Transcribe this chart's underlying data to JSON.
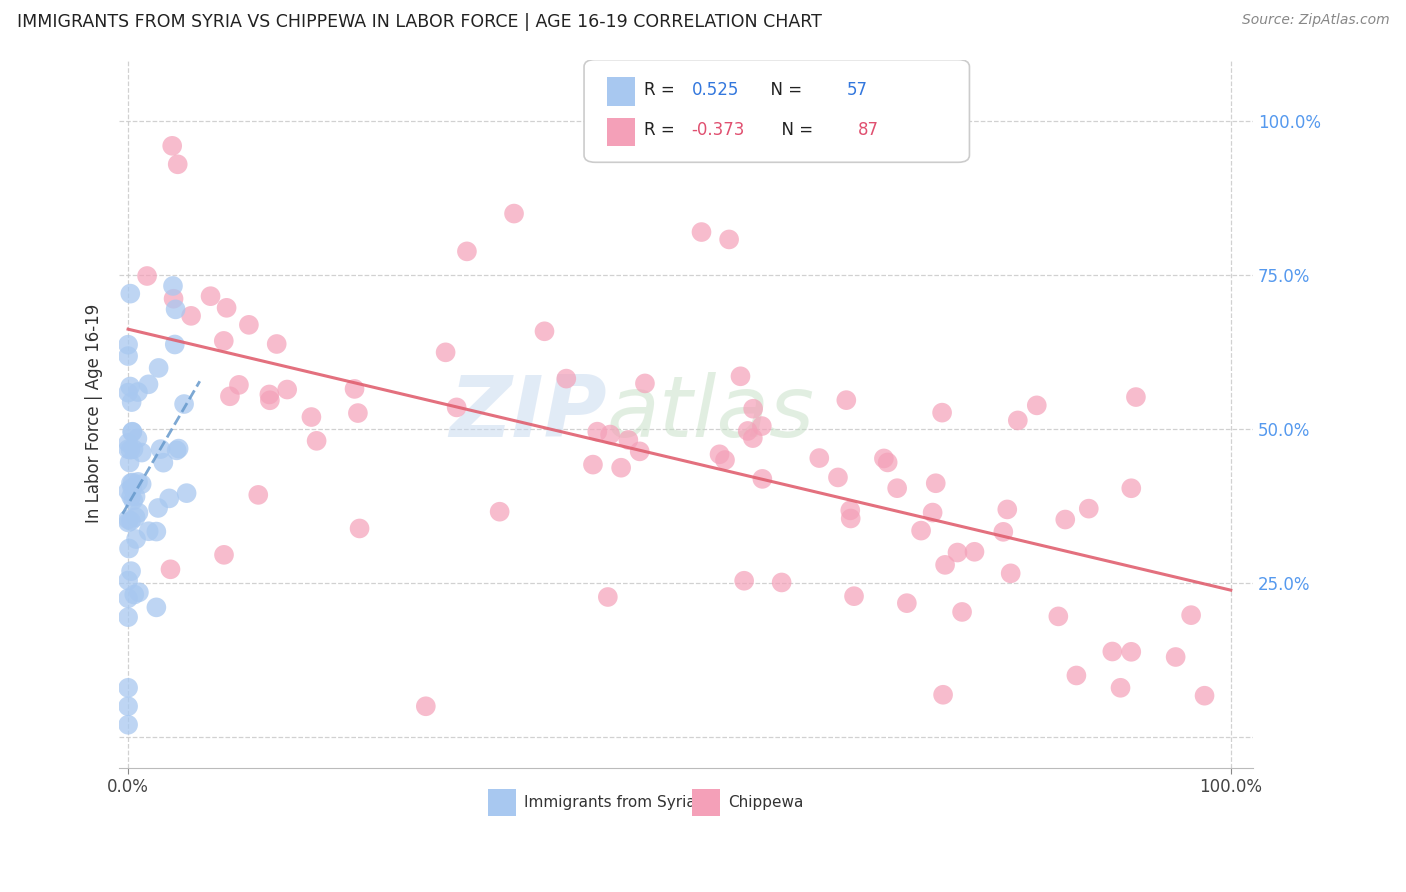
{
  "title": "IMMIGRANTS FROM SYRIA VS CHIPPEWA IN LABOR FORCE | AGE 16-19 CORRELATION CHART",
  "source": "Source: ZipAtlas.com",
  "ylabel": "In Labor Force | Age 16-19",
  "legend_labels": [
    "Immigrants from Syria",
    "Chippewa"
  ],
  "r_syria": 0.525,
  "n_syria": 57,
  "r_chippewa": -0.373,
  "n_chippewa": 87,
  "color_syria": "#a8c8f0",
  "color_chippewa": "#f4a0b8",
  "color_syria_line": "#6699cc",
  "color_chippewa_line": "#e06070",
  "background_color": "#ffffff",
  "watermark_zip": "ZIP",
  "watermark_atlas": "atlas",
  "xlim": [
    -0.008,
    1.02
  ],
  "ylim": [
    -0.05,
    1.1
  ],
  "x_ticks": [
    0.0,
    1.0
  ],
  "y_ticks": [
    0.0,
    0.25,
    0.5,
    0.75,
    1.0
  ],
  "right_ytick_labels": [
    "25.0%",
    "50.0%",
    "75.0%",
    "100.0%"
  ],
  "right_ytick_color": "#5599ee"
}
